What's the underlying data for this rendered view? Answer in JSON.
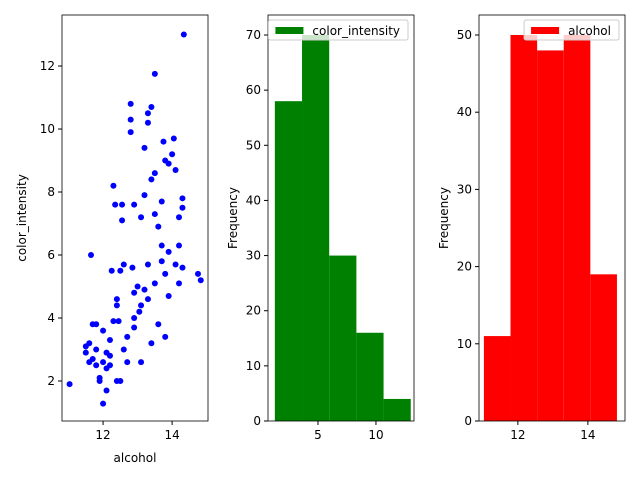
{
  "chart_data": [
    {
      "type": "scatter",
      "xlabel": "alcohol",
      "ylabel": "color_intensity",
      "color": "#0000ff",
      "x": [
        11.03,
        11.5,
        11.6,
        11.5,
        11.65,
        11.7,
        11.8,
        11.7,
        11.8,
        11.9,
        11.9,
        11.8,
        12.0,
        12.0,
        12.1,
        12.1,
        12.2,
        12.2,
        12.0,
        12.1,
        12.25,
        12.3,
        12.35,
        12.4,
        12.4,
        12.4,
        12.45,
        12.5,
        12.5,
        12.55,
        12.55,
        12.6,
        12.6,
        12.7,
        12.7,
        12.8,
        12.8,
        12.8,
        12.85,
        12.9,
        12.9,
        12.9,
        13.0,
        13.05,
        13.1,
        13.1,
        13.2,
        13.2,
        13.3,
        13.3,
        13.3,
        13.3,
        13.4,
        13.4,
        13.4,
        13.5,
        13.5,
        13.5,
        13.5,
        13.6,
        13.6,
        13.7,
        13.7,
        13.7,
        13.75,
        13.8,
        13.8,
        13.8,
        13.9,
        13.9,
        14.0,
        14.05,
        14.1,
        14.1,
        14.2,
        14.2,
        14.2,
        14.3,
        14.3,
        14.34,
        14.3,
        14.75,
        14.83,
        13.1,
        13.2,
        13.9,
        12.2,
        12.3,
        11.6,
        12.9
      ],
      "values": [
        1.9,
        3.1,
        3.2,
        2.9,
        6.0,
        3.8,
        3.8,
        2.7,
        2.5,
        2.0,
        2.1,
        3.0,
        1.28,
        2.6,
        1.7,
        2.4,
        2.8,
        3.3,
        3.6,
        2.9,
        5.5,
        8.2,
        7.6,
        4.6,
        4.4,
        2.0,
        3.9,
        5.5,
        2.0,
        7.1,
        7.6,
        5.7,
        3.0,
        2.6,
        3.4,
        10.8,
        9.9,
        10.3,
        5.6,
        4.8,
        7.6,
        4.0,
        5.0,
        4.2,
        2.6,
        7.2,
        9.4,
        7.9,
        10.5,
        10.2,
        5.7,
        4.6,
        10.7,
        3.2,
        8.4,
        8.6,
        11.75,
        7.3,
        5.1,
        6.9,
        3.8,
        7.7,
        6.3,
        5.8,
        9.6,
        5.4,
        3.4,
        9.0,
        8.9,
        6.1,
        9.2,
        9.7,
        8.7,
        5.7,
        6.3,
        7.2,
        5.1,
        7.5,
        7.8,
        13.0,
        5.6,
        5.4,
        5.2,
        4.4,
        4.9,
        4.7,
        2.5,
        3.9,
        2.6,
        3.7
      ],
      "xlim": [
        10.81,
        15.04
      ],
      "ylim": [
        0.73,
        13.62
      ],
      "xticks": [
        12,
        14
      ],
      "yticks": [
        2,
        4,
        6,
        8,
        10,
        12
      ]
    },
    {
      "type": "histogram",
      "ylabel": "Frequency",
      "legend": "upper right",
      "bins": [
        1.28,
        3.624,
        5.968,
        8.312,
        10.656,
        13.0
      ],
      "series": [
        {
          "name": "color_intensity",
          "color": "#008000",
          "values": [
            58,
            70,
            30,
            16,
            4
          ]
        }
      ],
      "xlim": [
        0.69,
        13.28
      ],
      "ylim": [
        0,
        73.63
      ],
      "xticks": [
        5,
        10
      ],
      "yticks": [
        0,
        10,
        20,
        30,
        40,
        50,
        60,
        70
      ]
    },
    {
      "type": "histogram",
      "ylabel": "Frequency",
      "legend": "upper right",
      "bins": [
        11.03,
        11.79,
        12.55,
        13.31,
        14.07,
        14.83
      ],
      "series": [
        {
          "name": "alcohol",
          "color": "#ff0000",
          "values": [
            11,
            50,
            48,
            50,
            19
          ]
        }
      ],
      "xlim": [
        10.89,
        15.06
      ],
      "ylim": [
        0,
        52.59
      ],
      "xticks": [
        12,
        14
      ],
      "yticks": [
        0,
        10,
        20,
        30,
        40,
        50
      ]
    }
  ]
}
